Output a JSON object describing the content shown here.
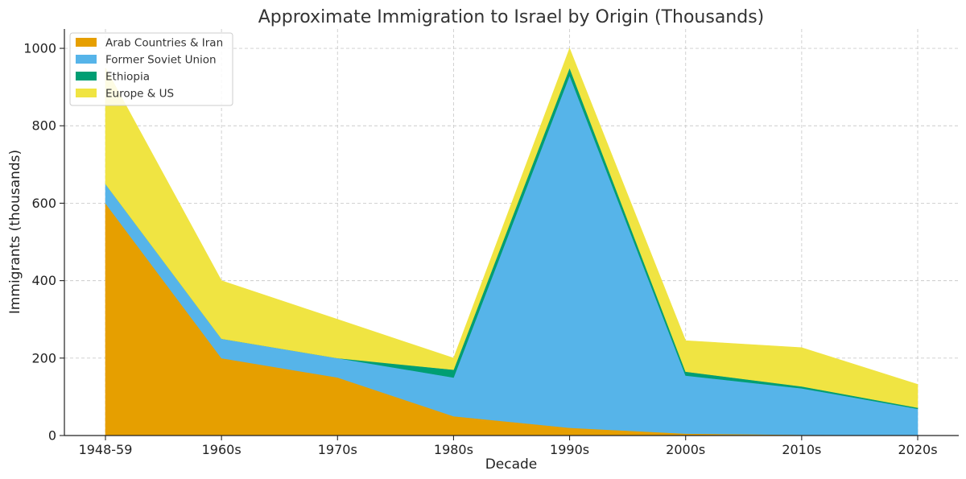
{
  "chart_data": {
    "type": "area",
    "stacked": true,
    "title": "Approximate Immigration to Israel by Origin (Thousands)",
    "xlabel": "Decade",
    "ylabel": "Immigrants (thousands)",
    "categories": [
      "1948-59",
      "1960s",
      "1970s",
      "1980s",
      "1990s",
      "2000s",
      "2010s",
      "2020s"
    ],
    "ylim": [
      0,
      1050
    ],
    "yticks": [
      0,
      200,
      400,
      600,
      800,
      1000
    ],
    "grid": true,
    "legend_position": "top-left",
    "series": [
      {
        "name": "Arab Countries & Iran",
        "color": "#E69F00",
        "values": [
          600,
          200,
          150,
          50,
          20,
          5,
          2,
          1
        ]
      },
      {
        "name": "Former Soviet Union",
        "color": "#56B4E9",
        "values": [
          50,
          50,
          50,
          100,
          910,
          150,
          120,
          68
        ]
      },
      {
        "name": "Ethiopia",
        "color": "#009E73",
        "values": [
          0,
          0,
          0,
          20,
          20,
          10,
          5,
          3
        ]
      },
      {
        "name": "Europe & US",
        "color": "#F0E442",
        "values": [
          300,
          150,
          100,
          30,
          50,
          80,
          100,
          60
        ]
      }
    ]
  }
}
